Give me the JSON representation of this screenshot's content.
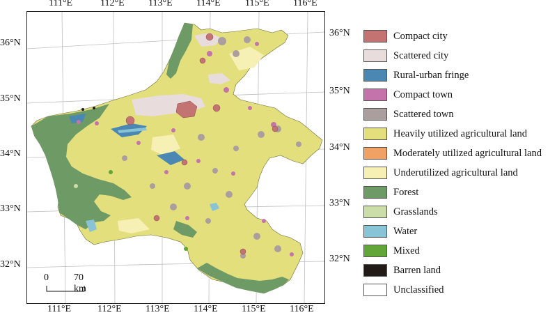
{
  "map": {
    "top_lon_labels": [
      "111°E",
      "112°E",
      "113°E",
      "114°E",
      "115°E",
      "116°E"
    ],
    "bottom_lon_labels": [
      "111°E",
      "112°E",
      "113°E",
      "114°E",
      "115°E",
      "116°E"
    ],
    "left_lat_labels": [
      "36°N",
      "35°N",
      "34°N",
      "33°N",
      "32°N"
    ],
    "right_lat_labels": [
      "36°N",
      "35°N",
      "34°N",
      "33°N",
      "32°N"
    ],
    "scale_bar": {
      "zero_label": "0",
      "distance_label": "70 km"
    }
  },
  "legend": {
    "items": [
      {
        "label": "Compact city",
        "color": "#c47373"
      },
      {
        "label": "Scattered city",
        "color": "#e8dcdc"
      },
      {
        "label": "Rural-urban fringe",
        "color": "#4a88b3"
      },
      {
        "label": "Compact town",
        "color": "#c474a8"
      },
      {
        "label": "Scattered town",
        "color": "#ab9e9e"
      },
      {
        "label": "Heavily utilized agricultural land",
        "color": "#e3df7c"
      },
      {
        "label": "Moderately utilized agricultural land",
        "color": "#efa264"
      },
      {
        "label": "Underutilized agricultural land",
        "color": "#f6f0b4"
      },
      {
        "label": "Forest",
        "color": "#6e9a66"
      },
      {
        "label": "Grasslands",
        "color": "#cbdda8"
      },
      {
        "label": "Water",
        "color": "#88c3d6"
      },
      {
        "label": "Mixed",
        "color": "#62a63a"
      },
      {
        "label": "Barren land",
        "color": "#221a16"
      },
      {
        "label": "Unclassified",
        "color": "#ffffff"
      }
    ]
  }
}
